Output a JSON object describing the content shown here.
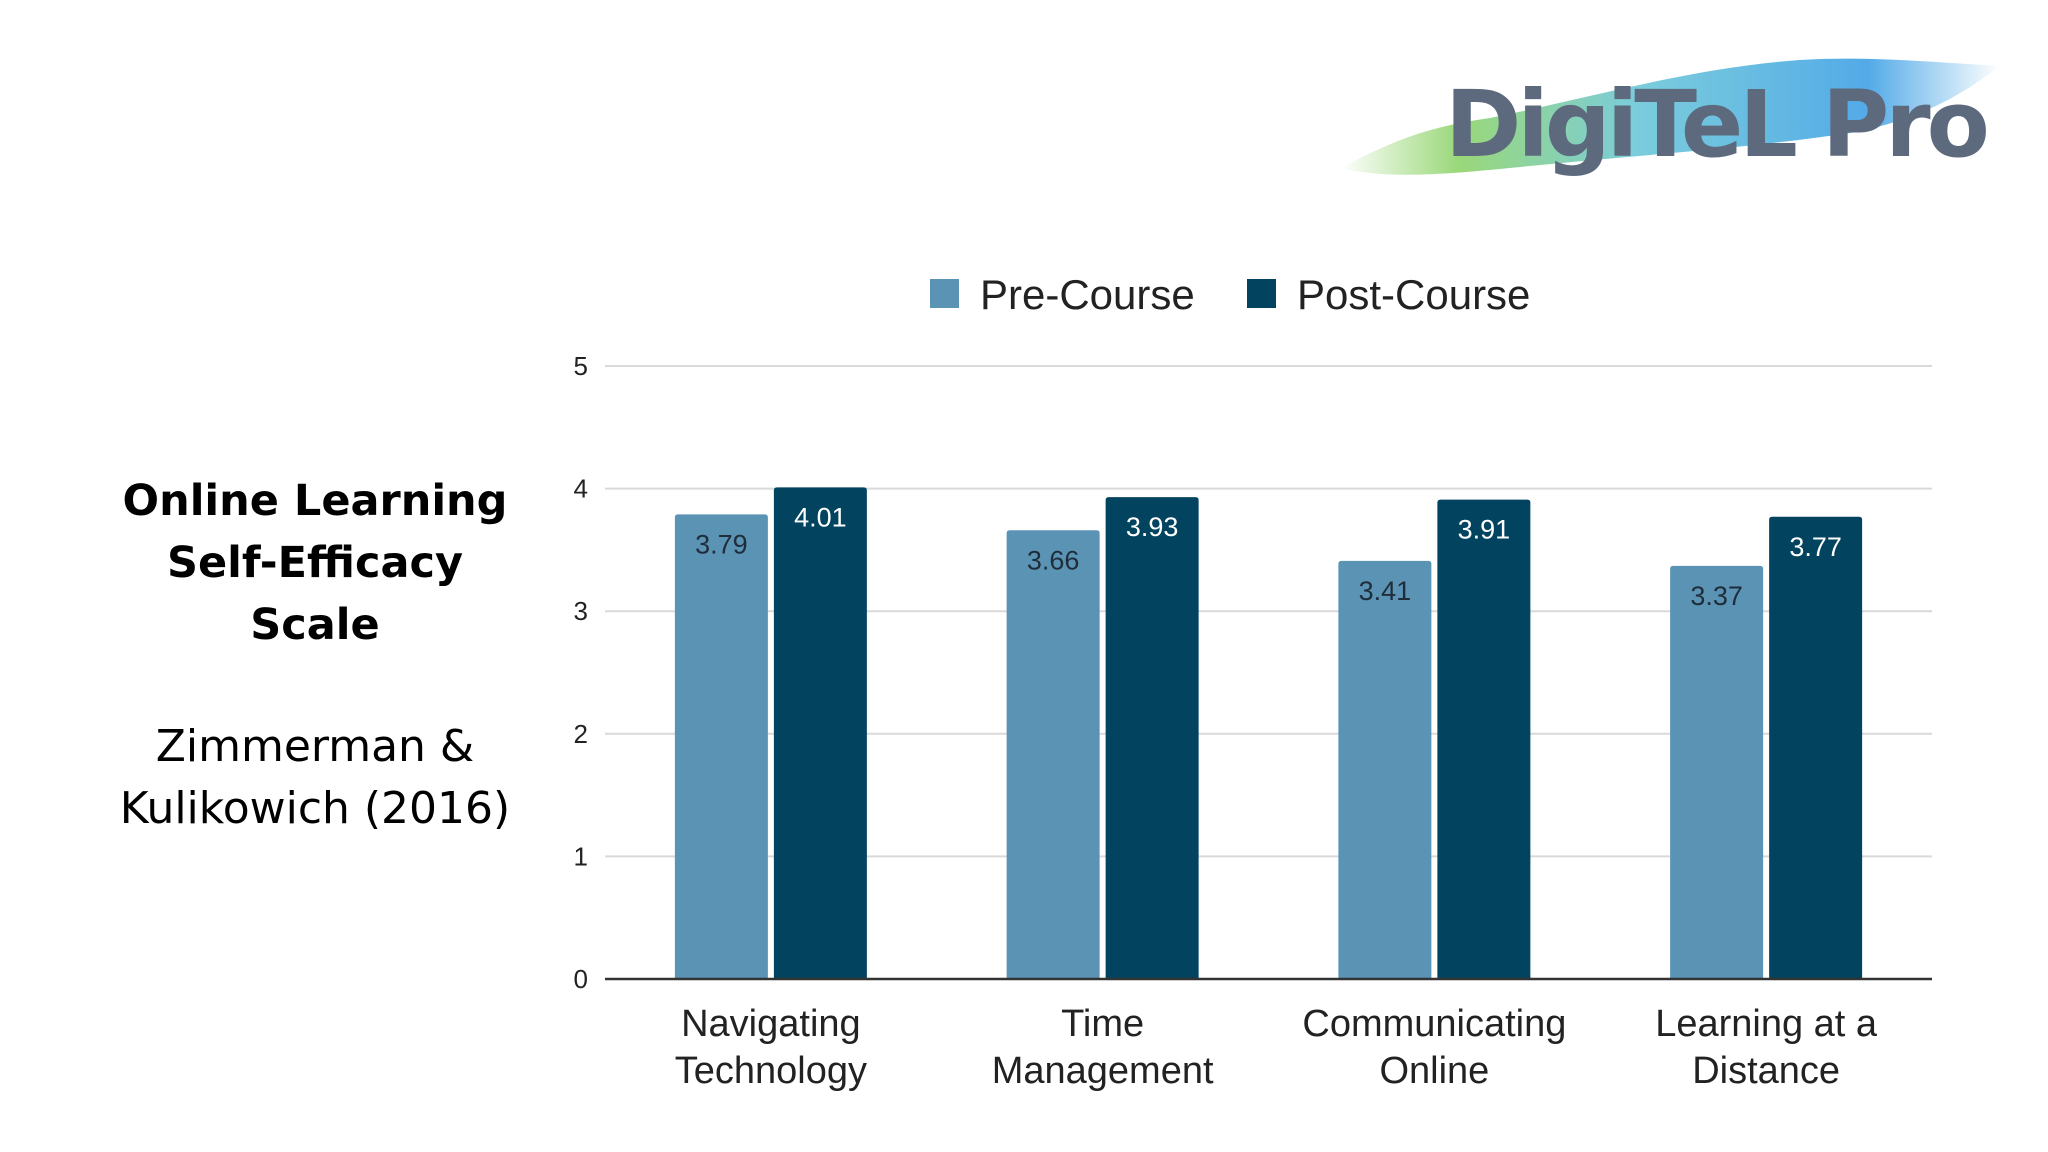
{
  "slide": {
    "title_lines": [
      "Online Learning",
      "Self-Efficacy",
      "Scale"
    ],
    "citation_lines": [
      "Zimmerman &",
      "Kulikowich (2016)"
    ],
    "logo_text": "DigiTeL Pro"
  },
  "colors": {
    "pre": "#5b93b5",
    "post": "#02445f",
    "grid": "#d9d9d9",
    "axis": "#333333",
    "label_on_pre": "#1f2d3a",
    "label_on_post": "#ffffff"
  },
  "chart_data": {
    "type": "bar",
    "categories": [
      [
        "Navigating",
        "Technology"
      ],
      [
        "Time",
        "Management"
      ],
      [
        "Communicating",
        "Online"
      ],
      [
        "Learning at a",
        "Distance"
      ]
    ],
    "series": [
      {
        "name": "Pre-Course",
        "values": [
          3.79,
          3.66,
          3.41,
          3.37
        ]
      },
      {
        "name": "Post-Course",
        "values": [
          4.01,
          3.93,
          3.91,
          3.77
        ]
      }
    ],
    "ylim": [
      0,
      5
    ],
    "yticks": [
      "0",
      "1",
      "2",
      "3",
      "4",
      "5"
    ],
    "grid": true,
    "legend": "top",
    "data_labels": true
  }
}
